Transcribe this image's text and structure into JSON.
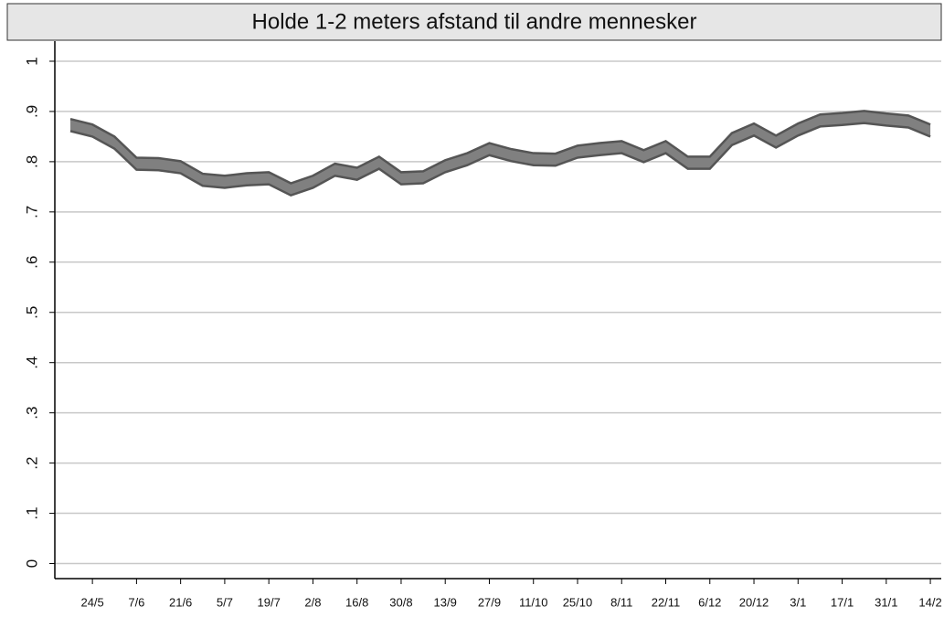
{
  "chart_data": {
    "type": "band",
    "title": "Holde 1-2 meters afstand til andre mennesker",
    "categories": [
      null,
      "24/5",
      null,
      "7/6",
      null,
      "21/6",
      null,
      "5/7",
      null,
      "19/7",
      null,
      "2/8",
      null,
      "16/8",
      null,
      "30/8",
      null,
      "13/9",
      null,
      "27/9",
      null,
      "11/10",
      null,
      "25/10",
      null,
      "8/11",
      null,
      "22/11",
      null,
      "6/12",
      null,
      "20/12",
      null,
      "3/1",
      null,
      "17/1",
      null,
      "31/1",
      null,
      "14/2"
    ],
    "series": [
      {
        "name": "upper",
        "color": "#808080",
        "values": [
          0.885,
          0.874,
          0.85,
          0.808,
          0.807,
          0.801,
          0.776,
          0.772,
          0.777,
          0.779,
          0.757,
          0.772,
          0.796,
          0.788,
          0.81,
          0.779,
          0.781,
          0.803,
          0.817,
          0.837,
          0.825,
          0.817,
          0.816,
          0.832,
          0.837,
          0.841,
          0.823,
          0.841,
          0.81,
          0.81,
          0.857,
          0.876,
          0.852,
          0.876,
          0.894,
          0.897,
          0.901,
          0.896,
          0.892,
          0.874
        ]
      },
      {
        "name": "lower",
        "color": "#808080",
        "values": [
          0.861,
          0.85,
          0.826,
          0.784,
          0.783,
          0.777,
          0.752,
          0.748,
          0.753,
          0.755,
          0.733,
          0.748,
          0.772,
          0.764,
          0.786,
          0.755,
          0.757,
          0.779,
          0.793,
          0.813,
          0.801,
          0.793,
          0.792,
          0.808,
          0.813,
          0.817,
          0.799,
          0.817,
          0.786,
          0.786,
          0.833,
          0.852,
          0.828,
          0.852,
          0.87,
          0.873,
          0.877,
          0.872,
          0.868,
          0.85
        ]
      }
    ],
    "ylim": [
      -0.03,
      1.04
    ],
    "yticks": [
      0,
      {
        "value": 0.1,
        "label": ".1"
      },
      {
        "value": 0.2,
        "label": ".2"
      },
      {
        "value": 0.3,
        "label": ".3"
      },
      {
        "value": 0.4,
        "label": ".4"
      },
      {
        "value": 0.5,
        "label": ".5"
      },
      {
        "value": 0.6,
        "label": ".6"
      },
      {
        "value": 0.7,
        "label": ".7"
      },
      {
        "value": 0.8,
        "label": ".8"
      },
      {
        "value": 0.9,
        "label": ".9"
      },
      1
    ],
    "grid": true
  }
}
